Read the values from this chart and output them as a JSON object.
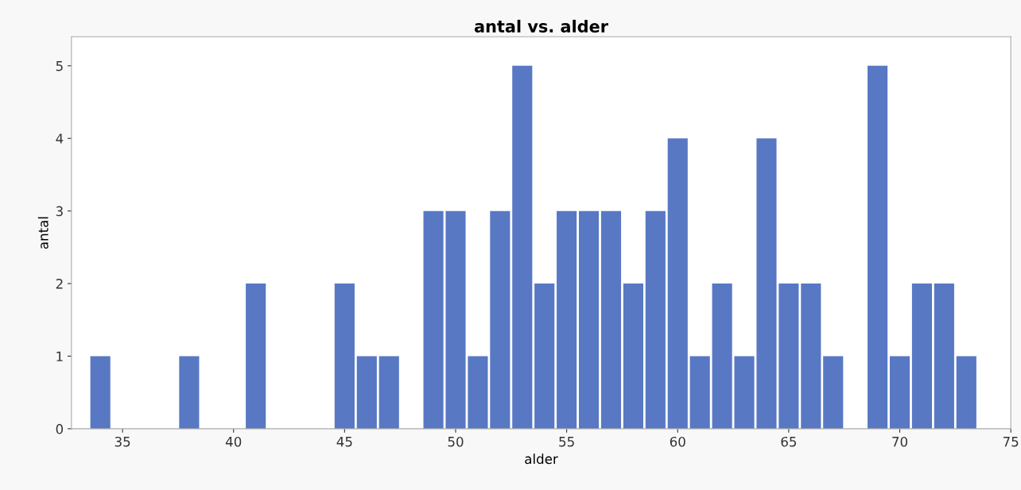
{
  "chart_data": {
    "type": "bar",
    "title": "antal vs. alder",
    "xlabel": "alder",
    "ylabel": "antal",
    "x": [
      34,
      38,
      41,
      45,
      46,
      47,
      49,
      50,
      51,
      52,
      53,
      54,
      55,
      56,
      57,
      58,
      59,
      60,
      61,
      62,
      63,
      64,
      65,
      66,
      67,
      69,
      70,
      71,
      72,
      73
    ],
    "values": [
      1,
      1,
      2,
      2,
      1,
      1,
      3,
      3,
      1,
      3,
      5,
      2,
      3,
      3,
      3,
      2,
      3,
      4,
      1,
      2,
      1,
      4,
      2,
      2,
      1,
      5,
      1,
      2,
      2,
      1
    ],
    "color": "#5878c4",
    "xlim": [
      32.7,
      75
    ],
    "xticks": [
      35,
      40,
      45,
      50,
      55,
      60,
      65,
      70,
      75
    ],
    "ylim": [
      0,
      5.4
    ],
    "yticks": [
      0,
      1,
      2,
      3,
      4,
      5
    ],
    "grid": false,
    "legend": false
  }
}
